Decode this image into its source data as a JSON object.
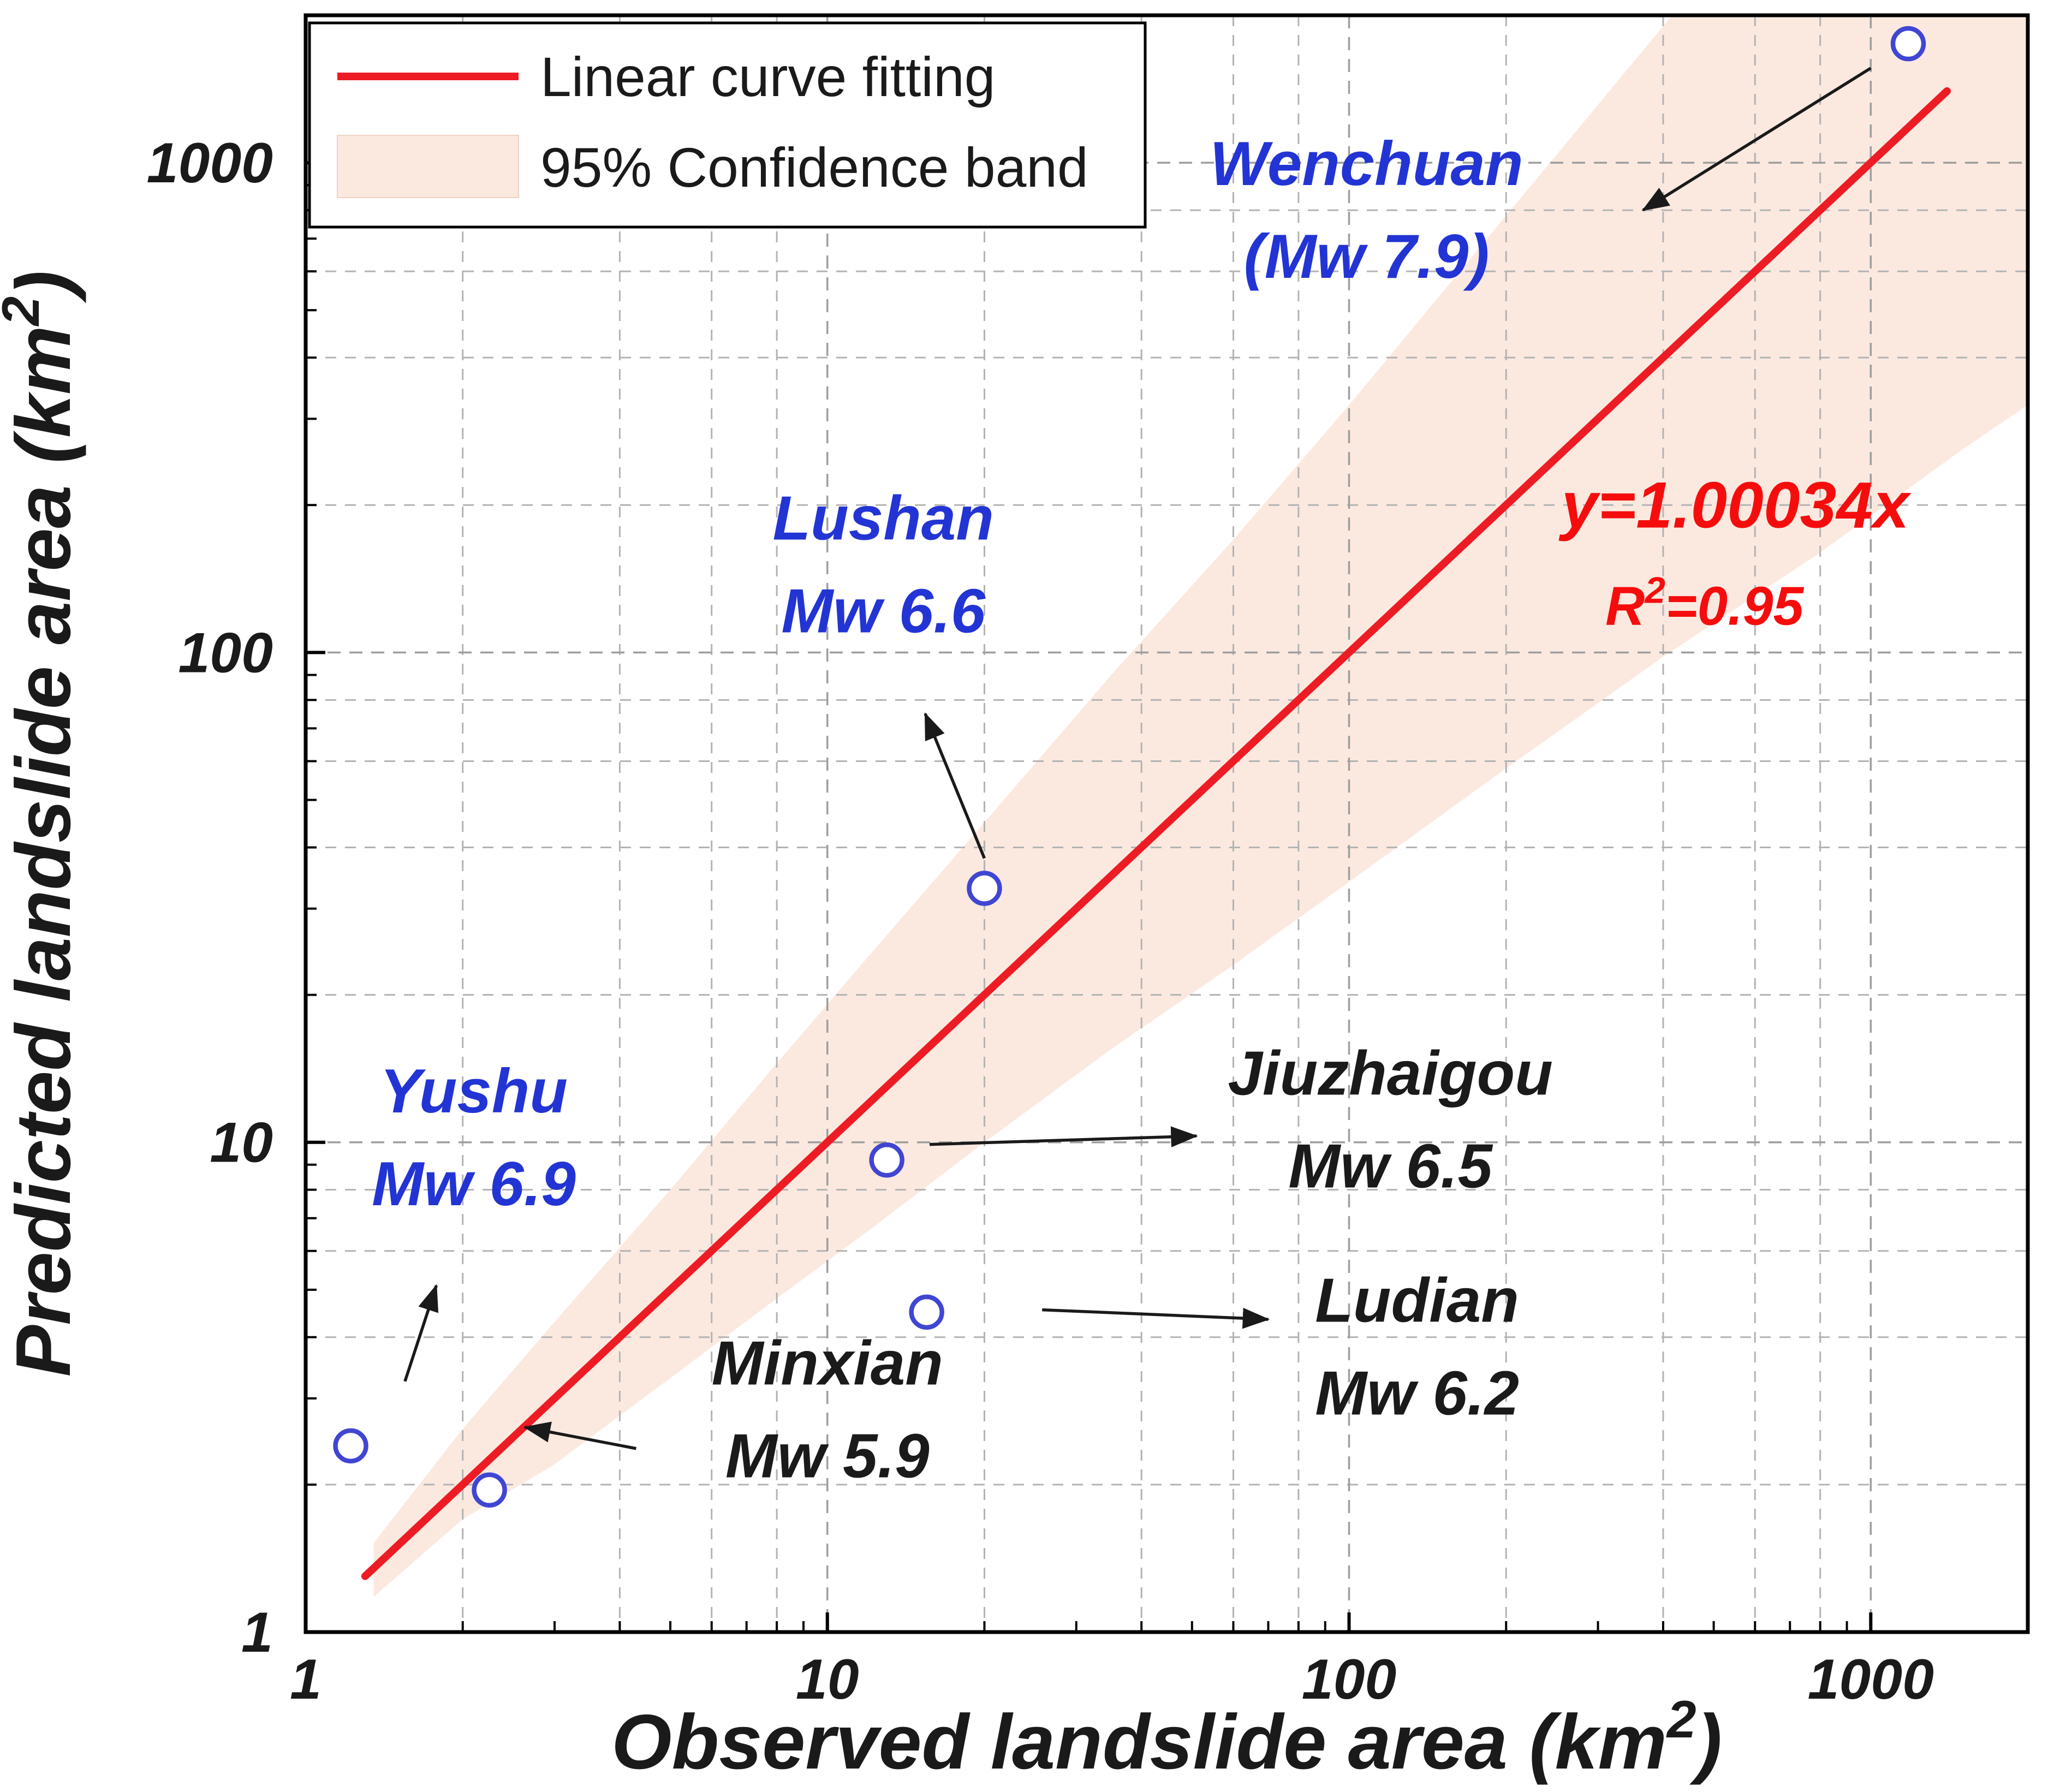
{
  "figure": {
    "background": "#ffffff"
  },
  "colors": {
    "blue": "#2334d4",
    "black": "#1a1a1a",
    "fit_line": "#ed1c24",
    "equation_text": "#f50d0d",
    "band_fill": "#fbe9e0",
    "band_edge": "#eed3c4",
    "point_stroke": "#4046d2",
    "grid_major": "#9e9e9e",
    "grid_minor": "#b3b3b3",
    "axis": "#000000"
  },
  "chart_data": {
    "type": "scatter",
    "xlabel": "Observed landslide area (km²)",
    "ylabel": "Predicted landslide area (km²)",
    "x_scale": "log",
    "y_scale": "log",
    "xlim": [
      1,
      2000
    ],
    "ylim": [
      1,
      2000
    ],
    "x_ticks": [
      1,
      10,
      100,
      1000
    ],
    "y_ticks": [
      1,
      10,
      100,
      1000
    ],
    "x_tick_labels": [
      "1",
      "10",
      "100",
      "1000"
    ],
    "y_tick_labels": [
      "1",
      "10",
      "100",
      "1000"
    ],
    "grid": "dashed, major + log minors (2,4,6,8)",
    "legend": {
      "position": "top-left",
      "entries": [
        {
          "swatch": "line",
          "label": "Linear curve fitting"
        },
        {
          "swatch": "band",
          "label": "95% Confidence band"
        }
      ]
    },
    "points": [
      {
        "name": "Yushu",
        "mw": 6.9,
        "x": 1.22,
        "y": 2.4
      },
      {
        "name": "Minxian",
        "mw": 5.9,
        "x": 2.25,
        "y": 1.95
      },
      {
        "name": "Jiuzhaigou",
        "mw": 6.5,
        "x": 13,
        "y": 9.2
      },
      {
        "name": "Ludian",
        "mw": 6.2,
        "x": 15.5,
        "y": 4.5
      },
      {
        "name": "Lushan",
        "mw": 6.6,
        "x": 20,
        "y": 33
      },
      {
        "name": "Wenchuan",
        "mw": 7.9,
        "x": 1180,
        "y": 1750
      }
    ],
    "fit_line": {
      "equation": "y=1.00034x",
      "r_squared": "R²=0.95",
      "slope": 1.00034,
      "x_start": 1.3,
      "x_end": 1400
    },
    "confidence_band": {
      "label": "95% Confidence band",
      "x": [
        1.35,
        2,
        3,
        5,
        8,
        12,
        20,
        35,
        60,
        100,
        200,
        400,
        800,
        1500,
        2000
      ],
      "lower": [
        1.18,
        1.7,
        2.2,
        3.3,
        4.8,
        6.6,
        10,
        15.5,
        23,
        34,
        58,
        98,
        160,
        260,
        320
      ],
      "upper": [
        1.52,
        2.6,
        4.3,
        8.0,
        14.5,
        24,
        45,
        90,
        170,
        320,
        780,
        1900,
        4600,
        11000,
        16000
      ]
    },
    "annotations": [
      {
        "id": "wenchuan",
        "lines": [
          "Wenchuan",
          "(Mw 7.9)"
        ],
        "color_key": "blue",
        "x": 108,
        "y": 900,
        "arrow": {
          "x1": 1000,
          "y1": 1560,
          "x2": 366,
          "y2": 800
        }
      },
      {
        "id": "lushan",
        "lines": [
          "Lushan",
          "Mw 6.6"
        ],
        "color_key": "blue",
        "x": 12.8,
        "y": 170,
        "arrow": {
          "x1": 20,
          "y1": 38,
          "x2": 15.4,
          "y2": 75
        }
      },
      {
        "id": "yushu",
        "lines": [
          "Yushu",
          "Mw 6.9"
        ],
        "color_key": "blue",
        "x": 2.1,
        "y": 11.5,
        "arrow": {
          "x1": 1.55,
          "y1": 3.25,
          "x2": 1.78,
          "y2": 5.1
        }
      },
      {
        "id": "jiuzhaigou",
        "lines": [
          "Jiuzhaigou",
          "Mw 6.5"
        ],
        "color_key": "black",
        "x": 120,
        "y": 12.5,
        "arrow": {
          "x1": 15.7,
          "y1": 9.9,
          "x2": 51,
          "y2": 10.3
        }
      },
      {
        "id": "ludian",
        "lines": [
          "Ludian",
          "Mw 6.2"
        ],
        "color_key": "black",
        "x": 135,
        "y": 4.3,
        "arrow": {
          "x1": 25.8,
          "y1": 4.55,
          "x2": 70,
          "y2": 4.35
        }
      },
      {
        "id": "minxian",
        "lines": [
          "Minxian",
          "Mw 5.9"
        ],
        "color_key": "black",
        "x": 10,
        "y": 3.2,
        "arrow": {
          "x1": 4.3,
          "y1": 2.37,
          "x2": 2.63,
          "y2": 2.62
        }
      }
    ],
    "equation_label": {
      "text": "y=1.00034x",
      "x": 550,
      "y": 180
    },
    "r2_label": {
      "text": "R²=0.95",
      "x": 480,
      "y": 114
    }
  }
}
